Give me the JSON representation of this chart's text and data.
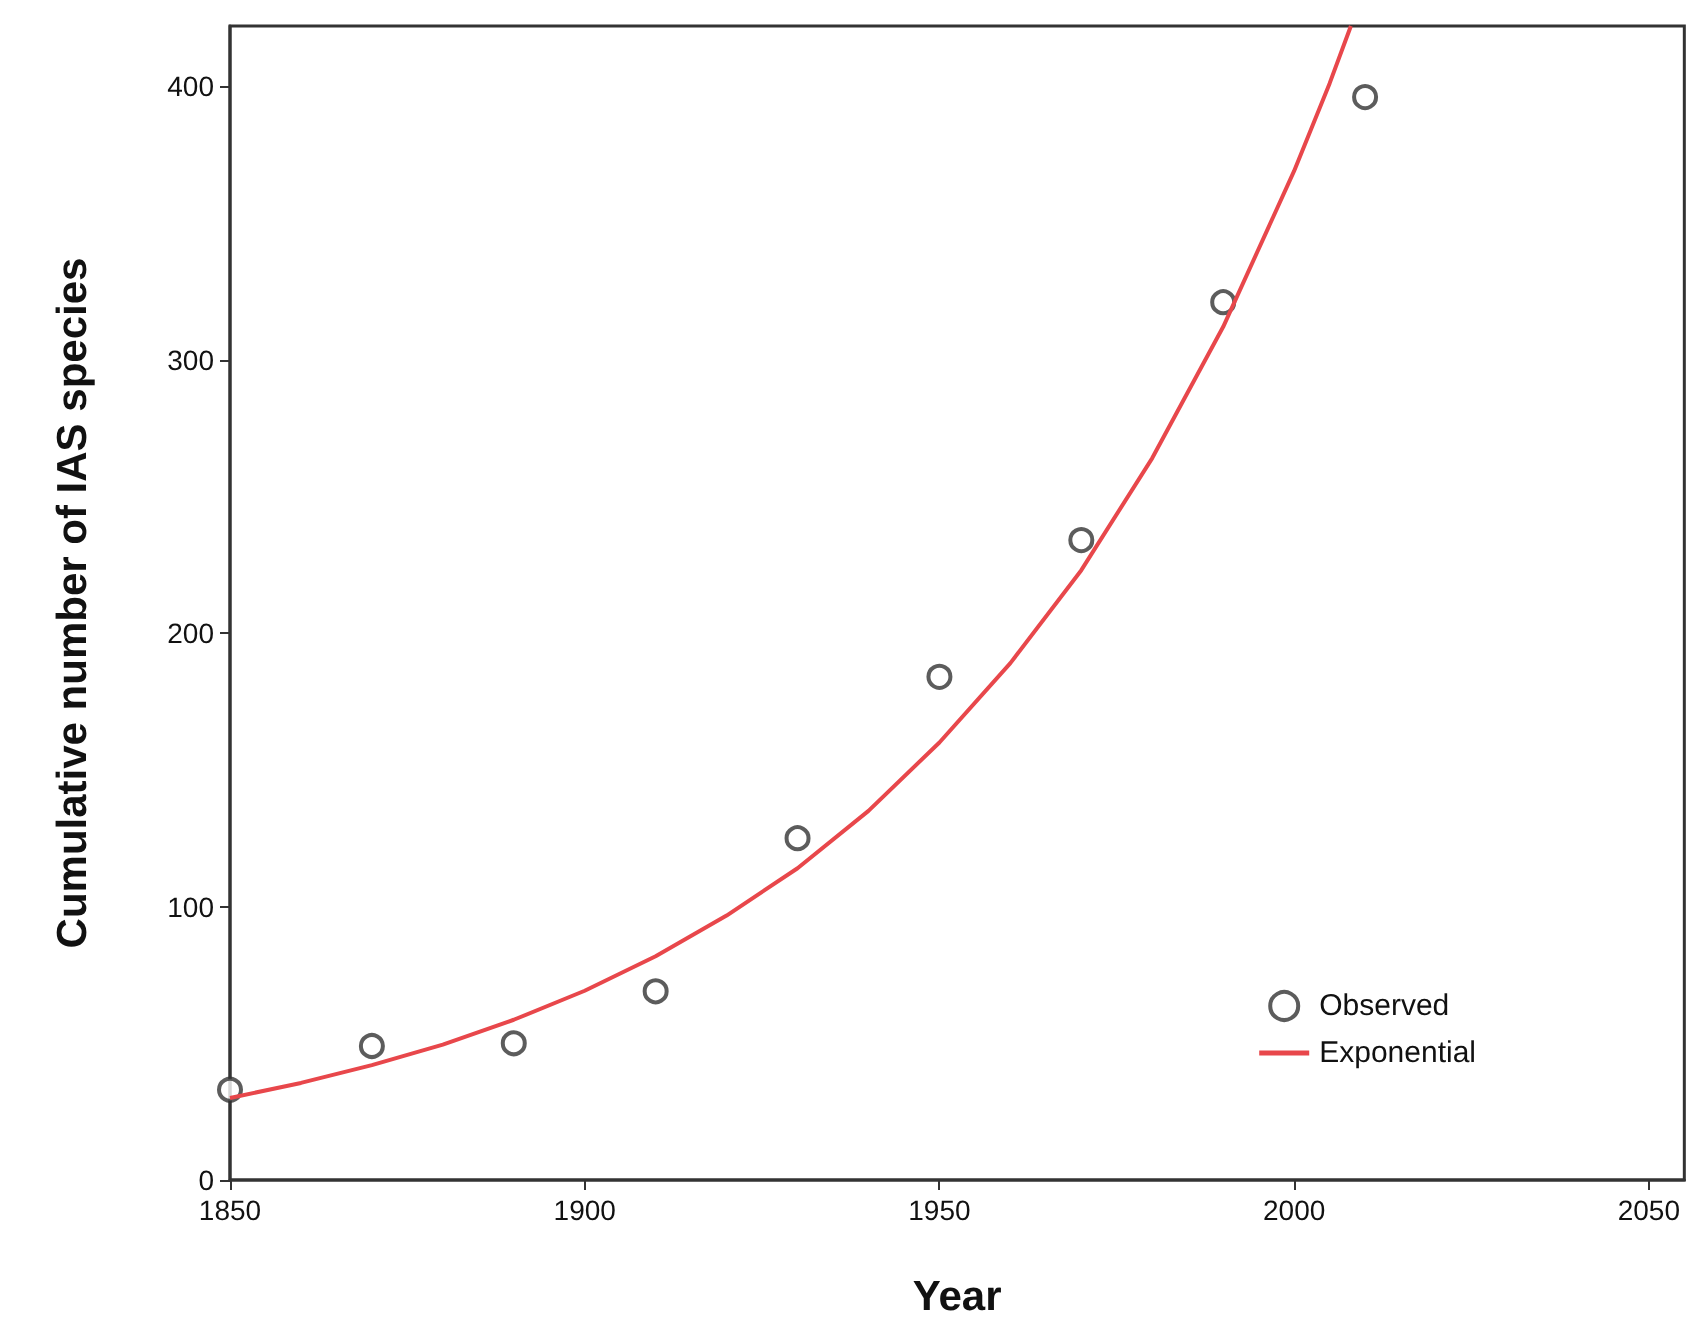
{
  "chart_data": {
    "type": "scatter",
    "xlabel": "Year",
    "ylabel": "Cumulative number of IAS species",
    "xlim": [
      1850,
      2055
    ],
    "xticks": [
      1850,
      1900,
      1950,
      2000,
      2050
    ],
    "ylim": [
      0,
      422
    ],
    "yticks": [
      0,
      100,
      200,
      300,
      400
    ],
    "grid": false,
    "legend": "bottom right",
    "series": [
      {
        "name": "Observed",
        "marker": "circle",
        "color": "#333333",
        "x": [
          1850,
          1870,
          1890,
          1910,
          1930,
          1950,
          1970,
          1990,
          2010
        ],
        "values": [
          33,
          49,
          50,
          69,
          125,
          184,
          234,
          321,
          396
        ]
      },
      {
        "name": "Exponential",
        "type": "line",
        "color": "#e8474b",
        "line_style": "solid",
        "x": [
          1850,
          1860,
          1870,
          1880,
          1890,
          1900,
          1910,
          1920,
          1930,
          1940,
          1950,
          1960,
          1970,
          1980,
          1990,
          2000,
          2005,
          2008
        ],
        "values": [
          30,
          35.5,
          42,
          49.5,
          58.6,
          69.2,
          81.8,
          96.7,
          114,
          135,
          160,
          189,
          223,
          264,
          312,
          369,
          401,
          422
        ]
      }
    ]
  }
}
